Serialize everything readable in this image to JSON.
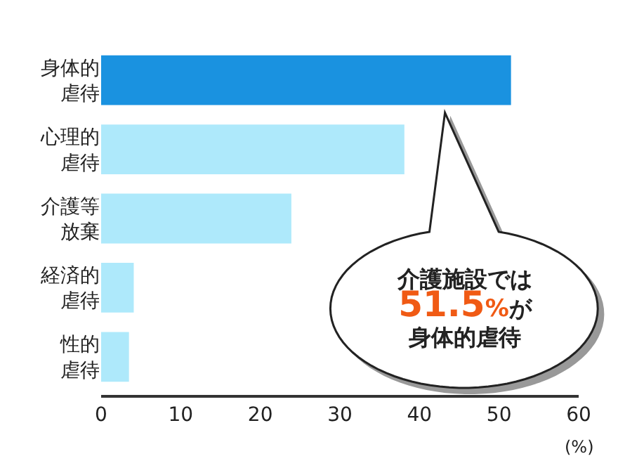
{
  "chart_data": {
    "type": "bar",
    "orientation": "horizontal",
    "categories": [
      "身体的虐待",
      "心理的虐待",
      "介護等放棄",
      "経済的虐待",
      "性的虐待"
    ],
    "values": [
      51.5,
      38.1,
      23.9,
      4.1,
      3.5
    ],
    "colors": [
      "#1a92e0",
      "#aee9fb",
      "#aee9fb",
      "#aee9fb",
      "#aee9fb"
    ],
    "xlim": [
      0,
      60
    ],
    "xticks": [
      0,
      10,
      20,
      30,
      40,
      50,
      60
    ],
    "xlabel": "(%)",
    "legend": false,
    "annotations": [
      "介護施設では51.5%が身体的虐待"
    ]
  }
}
